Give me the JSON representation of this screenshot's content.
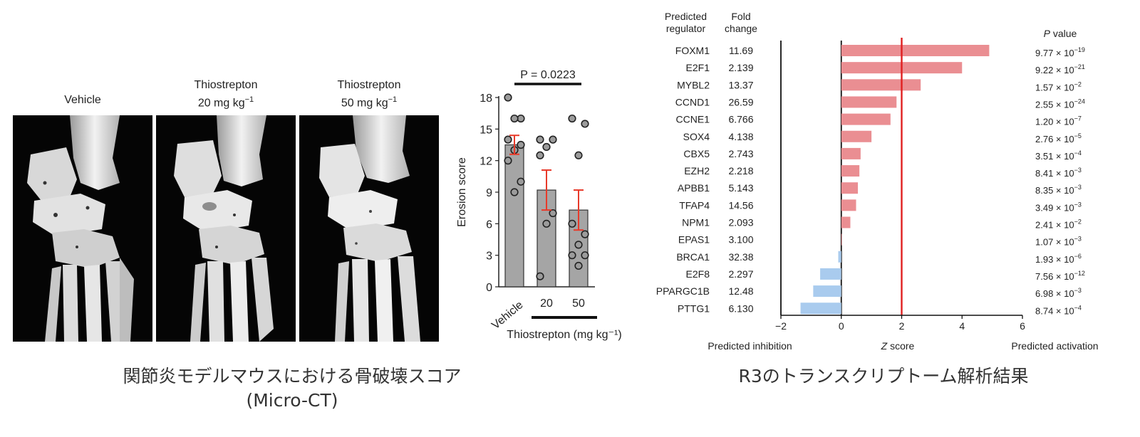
{
  "left_figure": {
    "panels": [
      {
        "line1": "Vehicle",
        "line2": ""
      },
      {
        "line1": "Thiostrepton",
        "line2": "20 mg kg",
        "sup": "−1"
      },
      {
        "line1": "Thiostrepton",
        "line2": "50 mg kg",
        "sup": "−1"
      }
    ],
    "caption_line1": "関節炎モデルマウスにおける骨破壊スコア",
    "caption_line2": "(Micro-CT)"
  },
  "right_figure": {
    "header_regulator": "Predicted\nregulator",
    "header_fold": "Fold\nchange",
    "header_pvalue_p": "P",
    "header_pvalue_rest": " value",
    "footer_inhibition": "Predicted inhibition",
    "footer_zscore_z": "Z",
    "footer_zscore_rest": " score",
    "footer_activation": "Predicted activation",
    "caption": "R3のトランスクリプトーム解析結果"
  },
  "chart_data": [
    {
      "type": "bar",
      "categories": [
        "Vehicle",
        "20",
        "50"
      ],
      "values": [
        13.5,
        9.2,
        7.3
      ],
      "errors": [
        0.9,
        1.9,
        1.9
      ],
      "points": [
        [
          18,
          16,
          16,
          14,
          13.5,
          13,
          12,
          10,
          9
        ],
        [
          14,
          14,
          13.3,
          12.5,
          7,
          6,
          1
        ],
        [
          16,
          15.5,
          12.5,
          6,
          5,
          4,
          3,
          3,
          2
        ]
      ],
      "ylabel": "Erosion score",
      "xlabel": "Thiostrepton (mg kg⁻¹)",
      "ylim": [
        0,
        18
      ],
      "yticks": [
        "0",
        "3",
        "6",
        "9",
        "12",
        "15",
        "18"
      ],
      "annotation": "P = 0.0223",
      "colors": {
        "bar": "#a5a5a5",
        "error": "#e83a2a"
      }
    },
    {
      "type": "bar",
      "orientation": "horizontal",
      "xlabel": "Z score",
      "xlim": [
        -2,
        6
      ],
      "xticks": [
        "−2",
        "0",
        "2",
        "4",
        "6"
      ],
      "threshold": 2,
      "categories": [
        "FOXM1",
        "E2F1",
        "MYBL2",
        "CCND1",
        "CCNE1",
        "SOX4",
        "CBX5",
        "EZH2",
        "APBB1",
        "TFAP4",
        "NPM1",
        "EPAS1",
        "BRCA1",
        "E2F8",
        "PPARGC1B",
        "PTTG1"
      ],
      "values": [
        4.9,
        4.0,
        2.63,
        1.83,
        1.63,
        1.0,
        0.64,
        0.6,
        0.55,
        0.49,
        0.3,
        0.0,
        -0.1,
        -0.7,
        -0.93,
        -1.35
      ],
      "fold_change": [
        "11.69",
        "2.139",
        "13.37",
        "26.59",
        "6.766",
        "4.138",
        "2.743",
        "2.218",
        "5.143",
        "14.56",
        "2.093",
        "3.100",
        "32.38",
        "2.297",
        "12.48",
        "6.130"
      ],
      "p_values": [
        {
          "m": "9.77",
          "e": "−19"
        },
        {
          "m": "9.22",
          "e": "−21"
        },
        {
          "m": "1.57",
          "e": "−2"
        },
        {
          "m": "2.55",
          "e": "−24"
        },
        {
          "m": "1.20",
          "e": "−7"
        },
        {
          "m": "2.76",
          "e": "−5"
        },
        {
          "m": "3.51",
          "e": "−4"
        },
        {
          "m": "8.41",
          "e": "−3"
        },
        {
          "m": "8.35",
          "e": "−3"
        },
        {
          "m": "3.49",
          "e": "−3"
        },
        {
          "m": "2.41",
          "e": "−2"
        },
        {
          "m": "1.07",
          "e": "−3"
        },
        {
          "m": "1.93",
          "e": "−6"
        },
        {
          "m": "7.56",
          "e": "−12"
        },
        {
          "m": "6.98",
          "e": "−3"
        },
        {
          "m": "8.74",
          "e": "−4"
        }
      ],
      "colors": {
        "activation": "#ea8e92",
        "inhibition": "#a9cbee",
        "threshold": "#e02020"
      }
    }
  ]
}
